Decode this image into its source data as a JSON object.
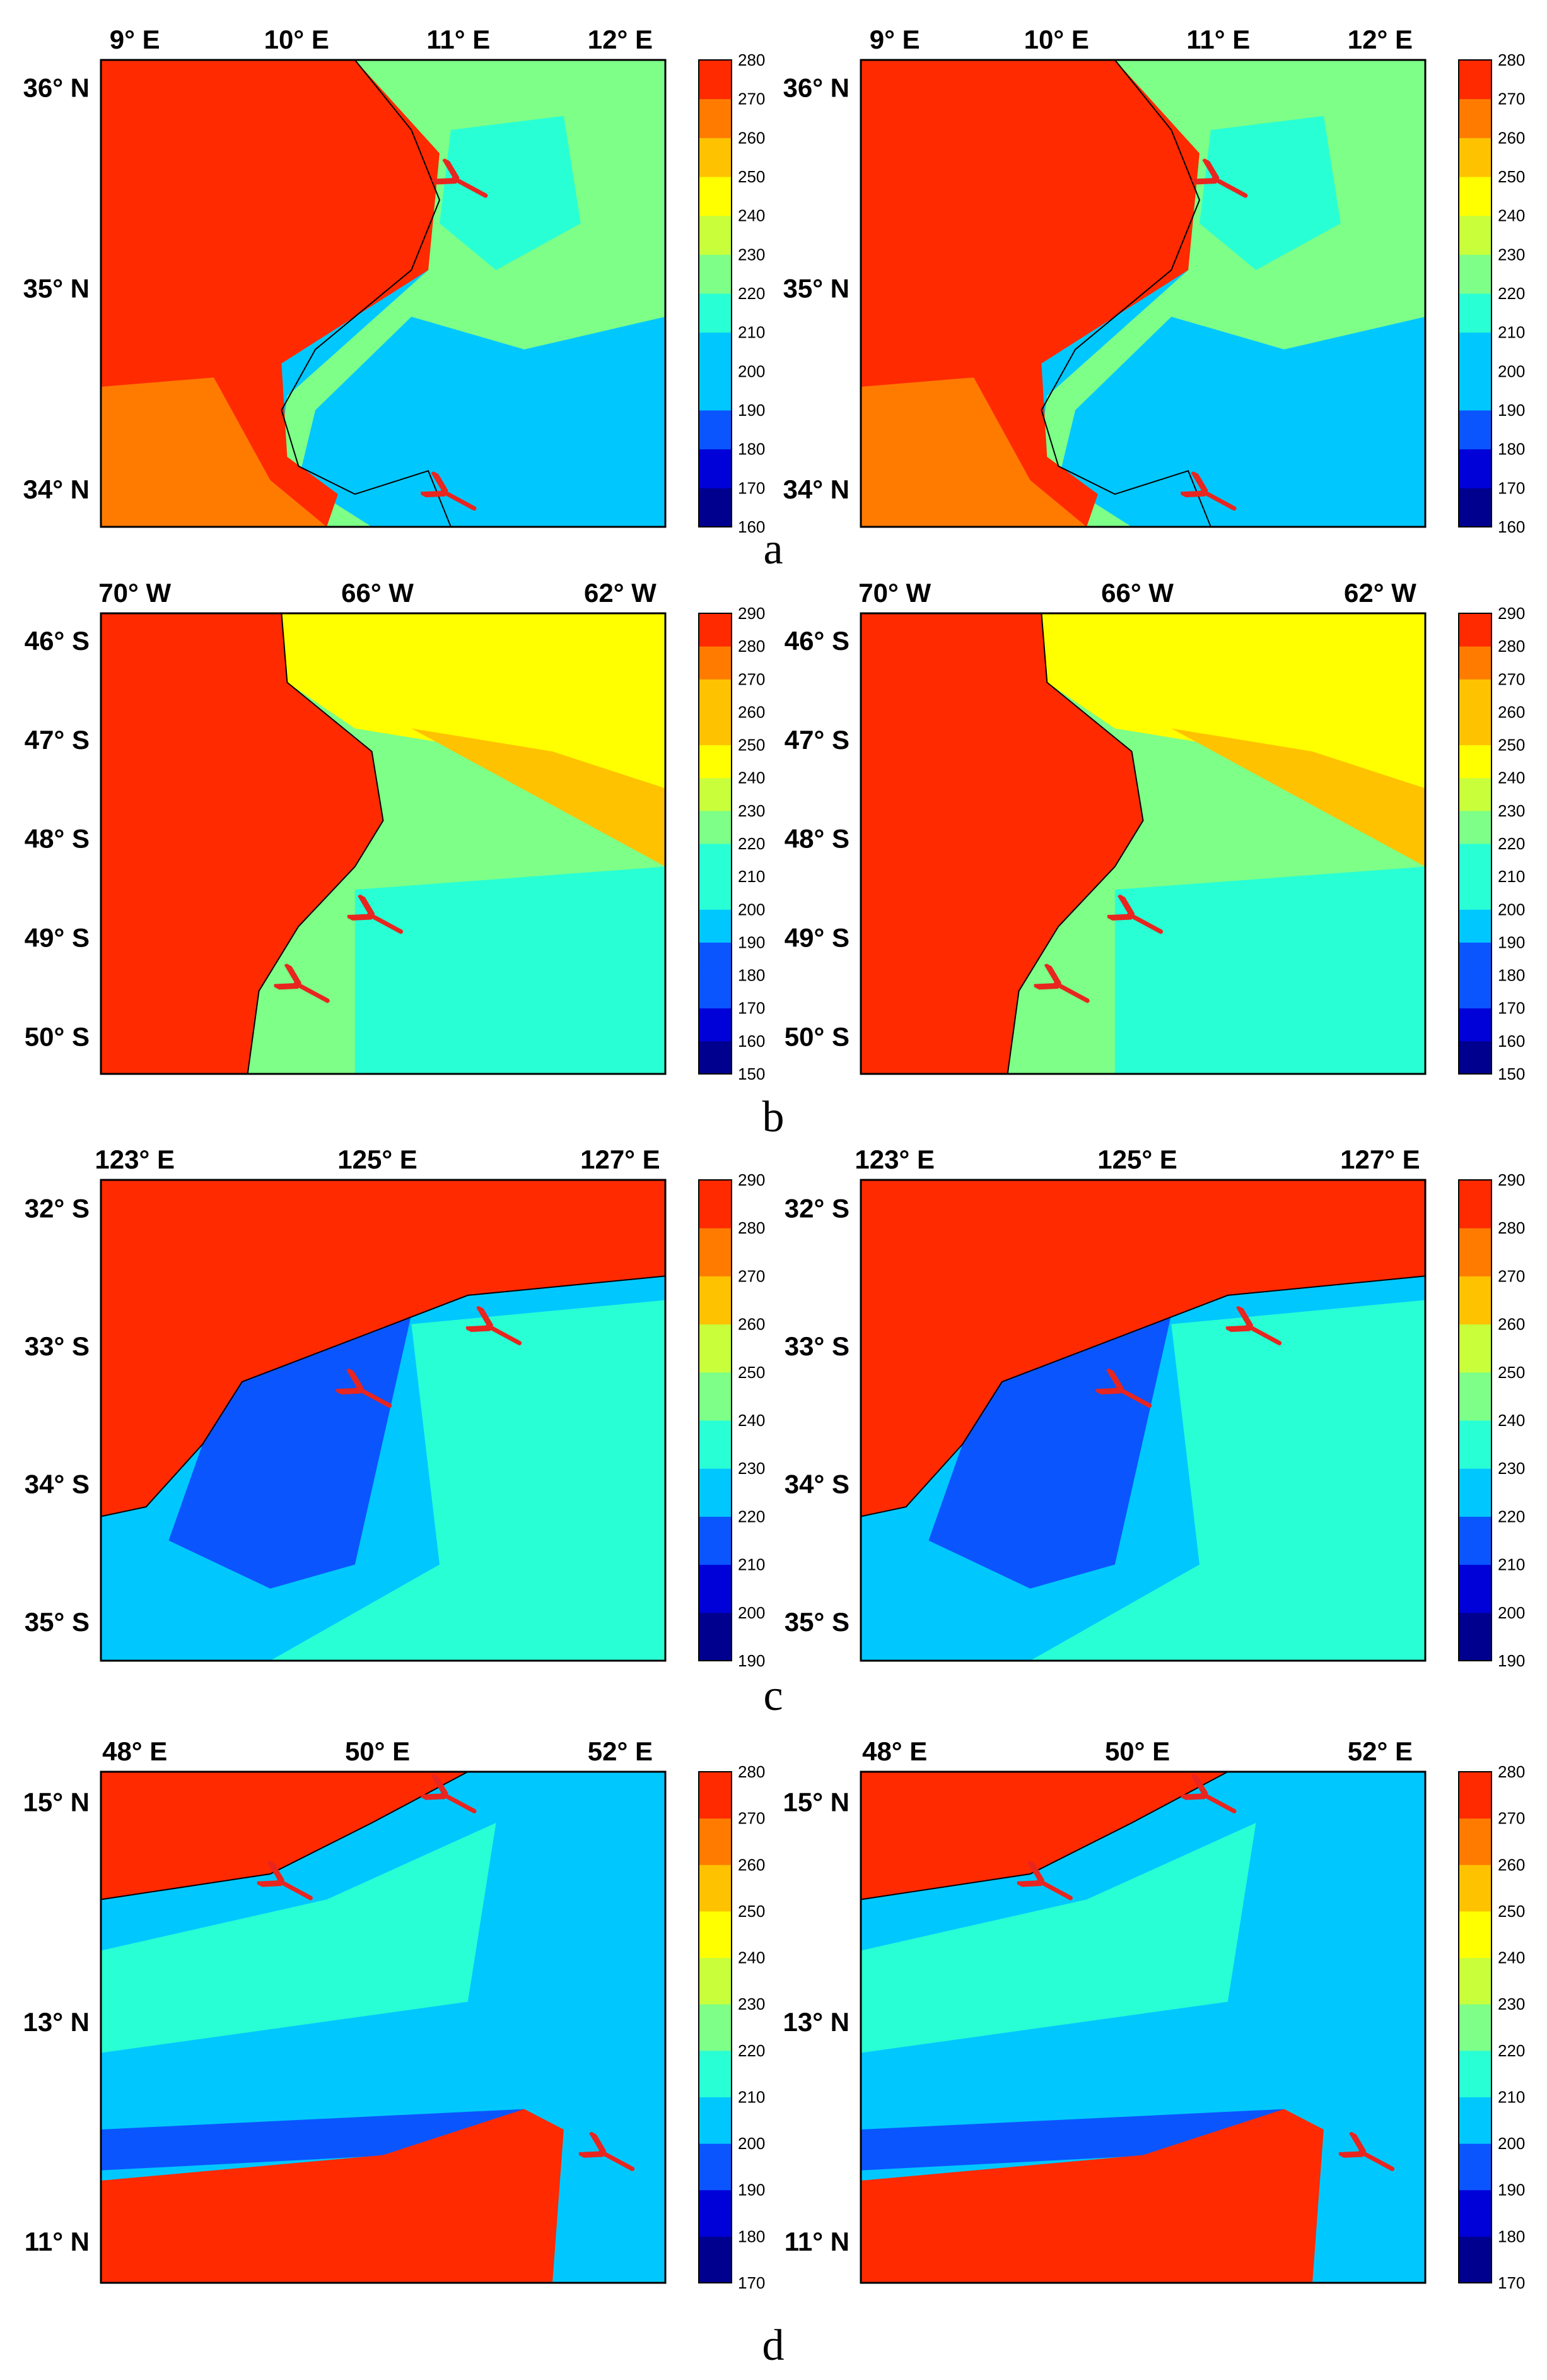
{
  "panels": [
    {
      "letter": "a",
      "lon_ticks": [
        {
          "v": 9,
          "label": "9° E"
        },
        {
          "v": 10,
          "label": "10° E"
        },
        {
          "v": 11,
          "label": "11° E"
        },
        {
          "v": 12,
          "label": "12° E"
        }
      ],
      "lat_ticks": [
        {
          "v": 36,
          "label": "36° N"
        },
        {
          "v": 35,
          "label": "35° N"
        },
        {
          "v": 34,
          "label": "34° N"
        }
      ],
      "colorbar": {
        "min": 160,
        "max": 280,
        "step": 10
      },
      "region": "tunisia"
    },
    {
      "letter": "b",
      "lon_ticks": [
        {
          "v": 70,
          "label": "70° W"
        },
        {
          "v": 66,
          "label": "66° W"
        },
        {
          "v": 62,
          "label": "62° W"
        }
      ],
      "lat_ticks": [
        {
          "v": 46,
          "label": "46° S"
        },
        {
          "v": 47,
          "label": "47° S"
        },
        {
          "v": 48,
          "label": "48° S"
        },
        {
          "v": 49,
          "label": "49° S"
        },
        {
          "v": 50,
          "label": "50° S"
        }
      ],
      "colorbar": {
        "min": 150,
        "max": 290,
        "step": 10
      },
      "region": "patagonia"
    },
    {
      "letter": "c",
      "lon_ticks": [
        {
          "v": 123,
          "label": "123° E"
        },
        {
          "v": 125,
          "label": "125° E"
        },
        {
          "v": 127,
          "label": "127° E"
        }
      ],
      "lat_ticks": [
        {
          "v": 32,
          "label": "32° S"
        },
        {
          "v": 33,
          "label": "33° S"
        },
        {
          "v": 34,
          "label": "34° S"
        },
        {
          "v": 35,
          "label": "35° S"
        }
      ],
      "colorbar": {
        "min": 190,
        "max": 290,
        "step": 10
      },
      "region": "australia"
    },
    {
      "letter": "d",
      "lon_ticks": [
        {
          "v": 48,
          "label": "48° E"
        },
        {
          "v": 50,
          "label": "50° E"
        },
        {
          "v": 52,
          "label": "52° E"
        }
      ],
      "lat_ticks": [
        {
          "v": 15,
          "label": "15° N"
        },
        {
          "v": 13,
          "label": "13° N"
        },
        {
          "v": 11,
          "label": "11° N"
        }
      ],
      "colorbar": {
        "min": 170,
        "max": 280,
        "step": 10
      },
      "region": "aden"
    }
  ],
  "colors": {
    "map_frame": "#000000",
    "arrow": "#e8251f",
    "coastline": "#000000"
  },
  "chart_data": [
    {
      "type": "heatmap",
      "panel": "a",
      "columns": 2,
      "colorbar_ticks": [
        160,
        170,
        180,
        190,
        200,
        210,
        220,
        230,
        240,
        250,
        260,
        270,
        280
      ],
      "x_ticks": [
        "9° E",
        "10° E",
        "11° E",
        "12° E"
      ],
      "y_ticks": [
        "36° N",
        "35° N",
        "34° N"
      ]
    },
    {
      "type": "heatmap",
      "panel": "b",
      "columns": 2,
      "colorbar_ticks": [
        150,
        160,
        170,
        180,
        190,
        200,
        210,
        220,
        230,
        240,
        250,
        260,
        270,
        280,
        290
      ],
      "x_ticks": [
        "70° W",
        "66° W",
        "62° W"
      ],
      "y_ticks": [
        "46° S",
        "47° S",
        "48° S",
        "49° S",
        "50° S"
      ]
    },
    {
      "type": "heatmap",
      "panel": "c",
      "columns": 2,
      "colorbar_ticks": [
        190,
        200,
        210,
        220,
        230,
        240,
        250,
        260,
        270,
        280,
        290
      ],
      "x_ticks": [
        "123° E",
        "125° E",
        "127° E"
      ],
      "y_ticks": [
        "32° S",
        "33° S",
        "34° S",
        "35° S"
      ]
    },
    {
      "type": "heatmap",
      "panel": "d",
      "columns": 2,
      "colorbar_ticks": [
        170,
        180,
        190,
        200,
        210,
        220,
        230,
        240,
        250,
        260,
        270,
        280
      ],
      "x_ticks": [
        "48° E",
        "50° E",
        "52° E"
      ],
      "y_ticks": [
        "15° N",
        "13° N",
        "11° N"
      ]
    }
  ]
}
